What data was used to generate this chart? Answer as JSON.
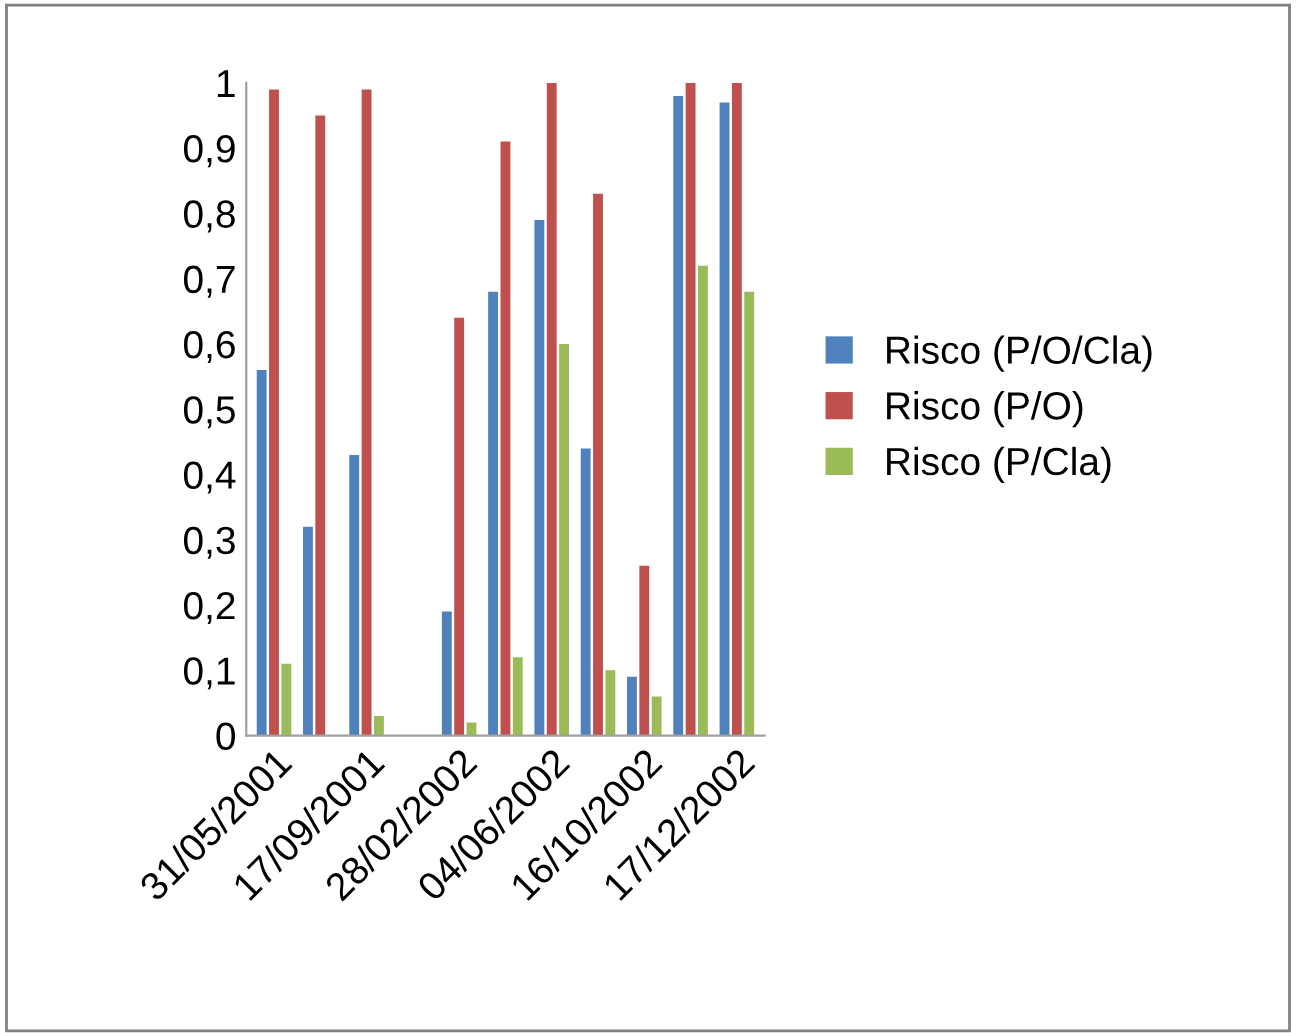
{
  "chart_data": {
    "type": "bar",
    "categories": [
      "31/05/2001",
      null,
      "17/09/2001",
      null,
      "28/02/2002",
      null,
      "04/06/2002",
      null,
      "16/10/2002",
      null,
      "17/12/2002"
    ],
    "series": [
      {
        "name": "Risco (P/O/Cla)",
        "color": "#4f81bd",
        "values": [
          0.56,
          0.32,
          0.43,
          0,
          0.19,
          0.68,
          0.79,
          0.44,
          0.09,
          0.98,
          0.97
        ]
      },
      {
        "name": "Risco (P/O)",
        "color": "#c0504d",
        "values": [
          0.99,
          0.95,
          0.99,
          0,
          0.64,
          0.91,
          1.0,
          0.83,
          0.26,
          1.0,
          1.0
        ]
      },
      {
        "name": "Risco (P/Cla)",
        "color": "#9bbb59",
        "values": [
          0.11,
          0,
          0.03,
          0,
          0.02,
          0.12,
          0.6,
          0.1,
          0.06,
          0.72,
          0.68
        ]
      }
    ],
    "ylim": [
      0,
      1
    ],
    "yticks": [
      0,
      "0,1",
      "0,2",
      "0,3",
      "0,4",
      "0,5",
      "0,6",
      "0,7",
      "0,8",
      "0,9",
      1
    ],
    "grid": false,
    "legend": "right"
  }
}
